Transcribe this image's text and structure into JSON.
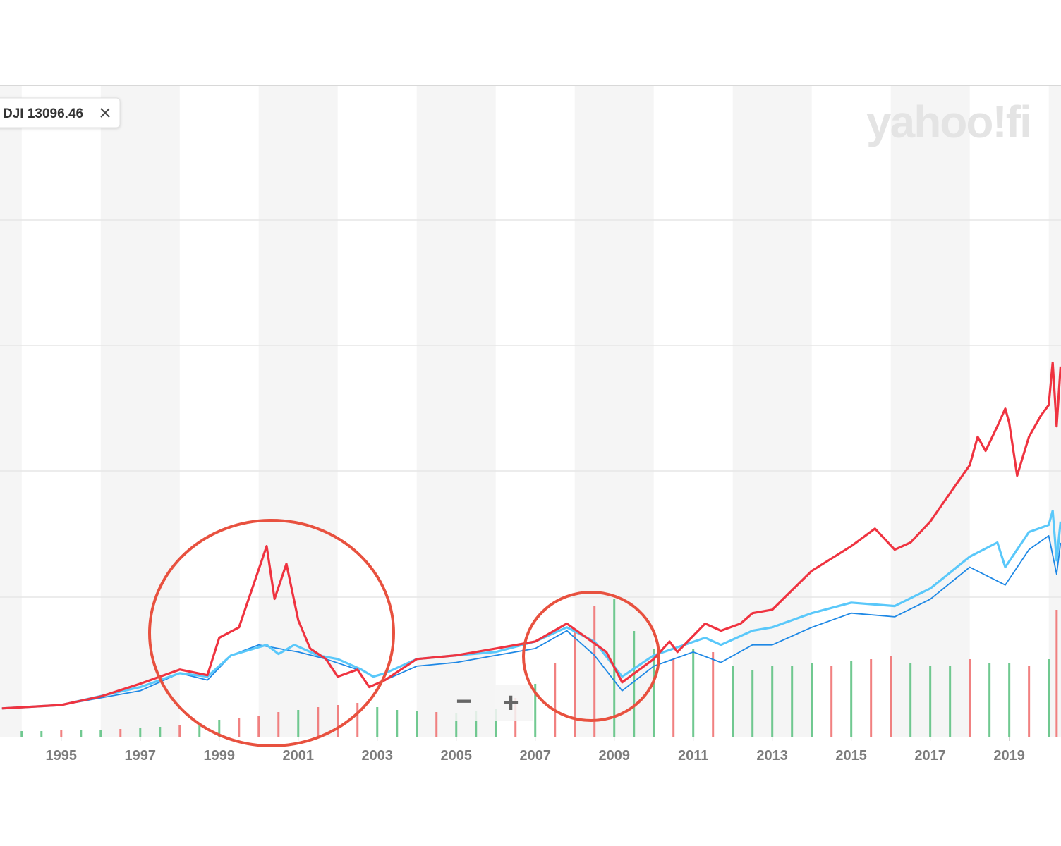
{
  "legend_label": "DJI 13096.46",
  "watermark": "yahoo!fi",
  "zoom": {
    "out": "−",
    "in": "+"
  },
  "chart_data": {
    "type": "line",
    "xlim": [
      1993.45,
      2020.31
    ],
    "xticks": [
      1995,
      1997,
      1999,
      2001,
      2003,
      2005,
      2007,
      2009,
      2011,
      2013,
      2015,
      2017,
      2019
    ],
    "ylim": [
      -100,
      2200
    ],
    "series": [
      {
        "color": "#ef3340",
        "width": 3.2,
        "x": [
          1993.5,
          1995,
          1996,
          1997,
          1998,
          1998.7,
          1999,
          1999.5,
          2000.2,
          2000.4,
          2000.7,
          2001,
          2001.3,
          2001.7,
          2002,
          2002.5,
          2002.8,
          2003.2,
          2004,
          2005,
          2006,
          2007,
          2007.8,
          2008.3,
          2008.8,
          2009.2,
          2010,
          2010.4,
          2010.6,
          2011.3,
          2011.7,
          2012.2,
          2012.5,
          2013,
          2014,
          2015,
          2015.6,
          2016.1,
          2016.5,
          2017,
          2017.5,
          2018,
          2018.2,
          2018.4,
          2018.7,
          2018.9,
          2019,
          2019.2,
          2019.5,
          2019.8,
          2020,
          2020.1,
          2020.2,
          2020.3
        ],
        "values": [
          0,
          12,
          42,
          87,
          137,
          117,
          249,
          286,
          572,
          386,
          510,
          311,
          211,
          174,
          112,
          137,
          75,
          100,
          174,
          187,
          211,
          236,
          299,
          249,
          199,
          92,
          174,
          236,
          199,
          299,
          274,
          299,
          336,
          348,
          485,
          572,
          634,
          560,
          585,
          659,
          759,
          858,
          958,
          908,
          995,
          1057,
          1007,
          821,
          958,
          1032,
          1070,
          1219,
          995,
          1206
        ]
      },
      {
        "color": "#5ac8fa",
        "width": 3.2,
        "x": [
          1993.5,
          1995,
          1997,
          1998,
          1998.7,
          1999.3,
          2000.2,
          2000.5,
          2000.9,
          2001.5,
          2002,
          2002.6,
          2002.9,
          2003.2,
          2004,
          2005,
          2006,
          2007,
          2007.8,
          2008.5,
          2009.2,
          2010,
          2011.3,
          2011.7,
          2012.5,
          2013,
          2014,
          2015,
          2016.1,
          2017,
          2018,
          2018.7,
          2018.9,
          2019.5,
          2020,
          2020.1,
          2020.2,
          2020.3
        ],
        "values": [
          0,
          12,
          75,
          124,
          112,
          187,
          224,
          192,
          224,
          187,
          174,
          137,
          112,
          124,
          174,
          187,
          199,
          236,
          286,
          236,
          112,
          187,
          249,
          224,
          274,
          286,
          336,
          373,
          361,
          423,
          535,
          585,
          498,
          622,
          647,
          697,
          522,
          659
        ]
      },
      {
        "color": "#1e88e5",
        "width": 1.8,
        "x": [
          1993.5,
          1995,
          1997,
          1998,
          1998.7,
          1999.3,
          2000,
          2000.5,
          2001,
          2001.7,
          2002.5,
          2002.8,
          2003.2,
          2004,
          2005,
          2006,
          2007,
          2007.8,
          2008.5,
          2009.2,
          2010,
          2011,
          2011.7,
          2012.5,
          2013,
          2014,
          2015,
          2016.1,
          2017,
          2018,
          2018.9,
          2019.5,
          2020,
          2020.2,
          2020.3
        ],
        "values": [
          0,
          12,
          62,
          124,
          100,
          187,
          224,
          211,
          199,
          174,
          137,
          75,
          100,
          149,
          162,
          187,
          211,
          274,
          187,
          62,
          149,
          199,
          162,
          224,
          224,
          286,
          336,
          323,
          385,
          498,
          435,
          560,
          609,
          473,
          584
        ]
      }
    ],
    "volume": {
      "ylim": [
        0,
        220
      ],
      "x": [
        1994,
        1994.5,
        1995,
        1995.5,
        1996,
        1996.5,
        1997,
        1997.5,
        1998,
        1998.5,
        1999,
        1999.5,
        2000,
        2000.5,
        2001,
        2001.5,
        2002,
        2002.5,
        2003,
        2003.5,
        2004,
        2004.5,
        2005,
        2005.5,
        2006,
        2006.5,
        2007,
        2007.5,
        2008,
        2008.5,
        2009,
        2009.5,
        2010,
        2010.5,
        2011,
        2011.5,
        2012,
        2012.5,
        2013,
        2013.5,
        2014,
        2014.5,
        2015,
        2015.5,
        2016,
        2016.5,
        2017,
        2017.5,
        2018,
        2018.5,
        2019,
        2019.5,
        2020,
        2020.2
      ],
      "values": [
        8,
        8,
        9,
        9,
        10,
        11,
        12,
        14,
        16,
        20,
        24,
        26,
        30,
        35,
        38,
        42,
        45,
        48,
        42,
        38,
        36,
        35,
        34,
        36,
        40,
        55,
        75,
        105,
        150,
        185,
        195,
        150,
        125,
        110,
        125,
        120,
        100,
        95,
        100,
        100,
        105,
        100,
        108,
        110,
        115,
        105,
        100,
        100,
        110,
        105,
        105,
        100,
        110,
        180
      ],
      "colors": [
        "#58c07e",
        "#58c07e",
        "#ef6b6b",
        "#58c07e",
        "#58c07e",
        "#ef6b6b",
        "#58c07e",
        "#58c07e",
        "#ef6b6b",
        "#58c07e",
        "#58c07e",
        "#ef6b6b",
        "#ef6b6b",
        "#ef6b6b",
        "#58c07e",
        "#ef6b6b",
        "#ef6b6b",
        "#ef6b6b",
        "#58c07e",
        "#58c07e",
        "#58c07e",
        "#ef6b6b",
        "#58c07e",
        "#58c07e",
        "#58c07e",
        "#ef6b6b",
        "#58c07e",
        "#ef6b6b",
        "#ef6b6b",
        "#ef6b6b",
        "#58c07e",
        "#58c07e",
        "#58c07e",
        "#ef6b6b",
        "#58c07e",
        "#ef6b6b",
        "#58c07e",
        "#58c07e",
        "#58c07e",
        "#58c07e",
        "#58c07e",
        "#ef6b6b",
        "#58c07e",
        "#ef6b6b",
        "#ef6b6b",
        "#58c07e",
        "#58c07e",
        "#58c07e",
        "#ef6b6b",
        "#58c07e",
        "#58c07e",
        "#ef6b6b",
        "#58c07e",
        "#ef6b6b"
      ]
    }
  }
}
